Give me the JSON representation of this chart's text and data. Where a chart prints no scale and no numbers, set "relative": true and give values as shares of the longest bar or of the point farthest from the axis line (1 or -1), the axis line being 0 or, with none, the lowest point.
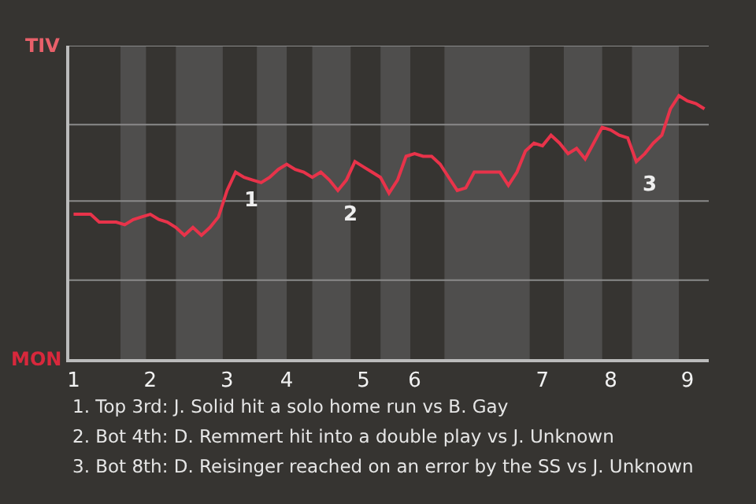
{
  "chart_data": {
    "type": "line",
    "relative": true,
    "categories": [
      "1",
      null,
      null,
      null,
      null,
      null,
      null,
      null,
      null,
      "2",
      null,
      null,
      null,
      null,
      null,
      null,
      null,
      null,
      "3",
      null,
      null,
      null,
      null,
      null,
      null,
      "4",
      null,
      null,
      null,
      null,
      null,
      null,
      null,
      null,
      "5",
      null,
      null,
      null,
      null,
      null,
      "6",
      null,
      null,
      null,
      null,
      null,
      null,
      null,
      null,
      null,
      null,
      null,
      null,
      null,
      null,
      "7",
      null,
      null,
      null,
      null,
      null,
      null,
      null,
      "8",
      null,
      null,
      null,
      null,
      null,
      null,
      null,
      null,
      "9",
      null,
      null
    ],
    "series": [
      {
        "color": "#e8334a",
        "values": [
          0.55,
          0.55,
          0.55,
          0.52,
          0.52,
          0.52,
          0.51,
          0.53,
          0.54,
          0.55,
          0.53,
          0.52,
          0.5,
          0.47,
          0.5,
          0.47,
          0.5,
          0.54,
          0.64,
          0.71,
          0.69,
          0.68,
          0.67,
          0.69,
          0.72,
          0.74,
          0.72,
          0.71,
          0.69,
          0.71,
          0.68,
          0.64,
          0.68,
          0.75,
          0.73,
          0.71,
          0.69,
          0.63,
          0.68,
          0.77,
          0.78,
          0.77,
          0.77,
          0.74,
          0.69,
          0.64,
          0.65,
          0.71,
          0.71,
          0.71,
          0.71,
          0.66,
          0.71,
          0.79,
          0.82,
          0.81,
          0.85,
          0.82,
          0.78,
          0.8,
          0.76,
          0.82,
          0.88,
          0.87,
          0.85,
          0.84,
          0.75,
          0.78,
          0.82,
          0.85,
          0.95,
          1.0,
          0.98,
          0.97,
          0.95
        ]
      }
    ],
    "marker": "none",
    "line_style": "solid",
    "ref_lines": [
      {
        "axis": "y",
        "value": 0.3,
        "color": "#8a8a8a"
      },
      {
        "axis": "y",
        "value": 0.6,
        "color": "#8a8a8a"
      },
      {
        "axis": "y",
        "value": 0.89,
        "color": "#8a8a8a"
      },
      {
        "axis": "y",
        "value": 1.19,
        "color": "#8a8a8a"
      }
    ],
    "annotations": [
      "TIV",
      "MON",
      "1",
      "2",
      "3",
      "1. Top 3rd: J. Solid hit a solo home run vs B. Gay",
      "2. Bot 4th: D. Remmert hit into a double play vs J. Unknown",
      "3. Bot 8th: D. Reisinger reached on an error by the SS vs J. Unknown"
    ]
  }
}
